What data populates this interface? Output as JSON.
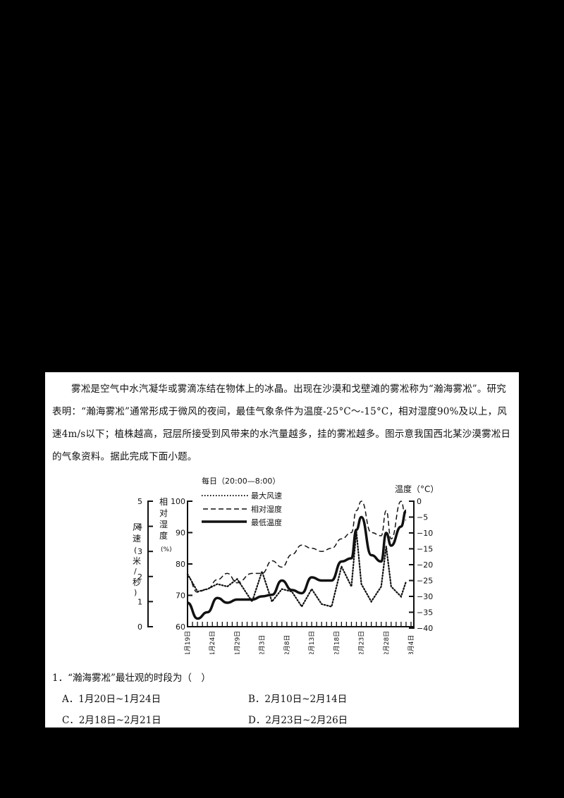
{
  "passage": "雾凇是空气中水汽凝华或雾滴冻结在物体上的冰晶。出现在沙漠和戈壁滩的雾凇称为“瀚海雾凇”。研究表明：“瀚海雾凇”通常形成于微风的夜间，最佳气象条件为温度-25°C～-15°C，相对湿度90%及以上，风速4m/s以下；植株越高，冠层所接受到风带来的水汽量越多，挂的雾凇越多。图示意我国西北某沙漠雾凇日的气象资料。据此完成下面小题。",
  "question": {
    "stem": "1．“瀚海雾凇”最壮观的时段为（　）",
    "options": [
      {
        "label": "A．1月20日~1月24日"
      },
      {
        "label": "B．2月10日~2月14日"
      },
      {
        "label": "C．2月18日~2月21日"
      },
      {
        "label": "D．2月23日~2月26日"
      }
    ]
  },
  "chart_data": {
    "type": "line",
    "title": "每日（20:00—8:00）",
    "legend": [
      "最大风速",
      "相对湿度",
      "最低温度"
    ],
    "legend_position": "top-inside",
    "xlabel": "",
    "x_tick_labels": [
      "1月19日",
      "1月24日",
      "1月29日",
      "2月3日",
      "2月8日",
      "2月13日",
      "2月18日",
      "2月23日",
      "2月28日",
      "3月4日"
    ],
    "axes": {
      "wind": {
        "label": "风速（米/秒）",
        "range": [
          0,
          5
        ],
        "ticks": [
          "0",
          "1",
          "2",
          "3",
          "4",
          "5"
        ]
      },
      "humidity": {
        "label": "相对湿度（%）",
        "range": [
          60,
          100
        ],
        "ticks": [
          "60",
          "70",
          "80",
          "90",
          "100"
        ]
      },
      "temperature": {
        "label": "温度（°C）",
        "range": [
          -40,
          0
        ],
        "ticks": [
          "0",
          "-5",
          "-10",
          "-15",
          "-20",
          "-25",
          "-30",
          "-35",
          "-40"
        ]
      }
    },
    "x": [
      "1/19",
      "1/21",
      "1/23",
      "1/25",
      "1/27",
      "1/29",
      "2/1",
      "2/3",
      "2/5",
      "2/7",
      "2/9",
      "2/11",
      "2/13",
      "2/15",
      "2/17",
      "2/19",
      "2/21",
      "2/22",
      "2/23",
      "2/25",
      "2/27",
      "2/28",
      "3/1",
      "3/3",
      "3/4"
    ],
    "series": [
      {
        "name": "最大风速",
        "style": "dotted",
        "axis": "wind",
        "values": [
          2.1,
          1.4,
          1.5,
          1.7,
          1.6,
          1.9,
          1.0,
          2.2,
          1.0,
          1.5,
          1.4,
          0.8,
          1.5,
          0.9,
          0.8,
          2.4,
          1.6,
          3.8,
          1.7,
          1.0,
          1.6,
          3.2,
          1.6,
          1.2,
          1.8
        ]
      },
      {
        "name": "相对湿度",
        "style": "dashed",
        "axis": "humidity",
        "values": [
          76,
          71,
          72,
          75,
          77,
          74,
          77,
          77,
          81,
          79,
          83,
          86,
          85,
          84,
          85,
          88,
          90,
          97,
          100,
          90,
          89,
          97,
          88,
          100,
          94
        ]
      },
      {
        "name": "最低温度",
        "style": "solid",
        "axis": "temperature",
        "values": [
          -32,
          -37,
          -35,
          -30.5,
          -32,
          -31,
          -31,
          -30,
          -29.5,
          -25,
          -28,
          -29,
          -24,
          -25,
          -25,
          -19,
          -18,
          -9,
          -5,
          -17,
          -19,
          -10,
          -14,
          -8,
          -3
        ]
      }
    ]
  }
}
